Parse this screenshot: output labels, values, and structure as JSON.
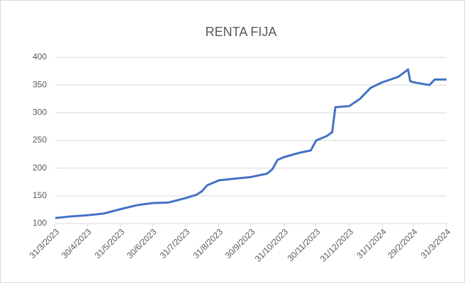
{
  "chart_data": {
    "type": "line",
    "title": "RENTA FIJA",
    "x": [
      "31/3/2023",
      "15/4/2023",
      "30/4/2023",
      "15/5/2023",
      "31/5/2023",
      "15/6/2023",
      "30/6/2023",
      "15/7/2023",
      "31/7/2023",
      "10/8/2023",
      "15/8/2023",
      "20/8/2023",
      "31/8/2023",
      "15/9/2023",
      "30/9/2023",
      "15/10/2023",
      "20/10/2023",
      "25/10/2023",
      "31/10/2023",
      "15/11/2023",
      "25/11/2023",
      "30/11/2023",
      "10/12/2023",
      "15/12/2023",
      "18/12/2023",
      "31/12/2023",
      "10/1/2024",
      "20/1/2024",
      "31/1/2024",
      "15/2/2024",
      "24/2/2024",
      "26/2/2024",
      "29/2/2024",
      "15/3/2024",
      "20/3/2024",
      "31/3/2024"
    ],
    "series": [
      {
        "name": "RENTA FIJA",
        "color": "#4472c4",
        "values": [
          110,
          113,
          115,
          118,
          126,
          133,
          137,
          138,
          146,
          152,
          158,
          169,
          178,
          181,
          184,
          190,
          198,
          215,
          220,
          228,
          232,
          250,
          258,
          265,
          310,
          312,
          325,
          345,
          355,
          365,
          378,
          357,
          355,
          350,
          360,
          360
        ]
      }
    ],
    "xticks": [
      "31/3/2023",
      "30/4/2023",
      "31/5/2023",
      "30/6/2023",
      "31/7/2023",
      "31/8/2023",
      "30/9/2023",
      "31/10/2023",
      "30/11/2023",
      "31/12/2023",
      "31/1/2024",
      "29/2/2024",
      "31/3/2024"
    ],
    "ylim": [
      100,
      400
    ],
    "yticks": [
      100,
      150,
      200,
      250,
      300,
      350,
      400
    ],
    "grid": true
  }
}
